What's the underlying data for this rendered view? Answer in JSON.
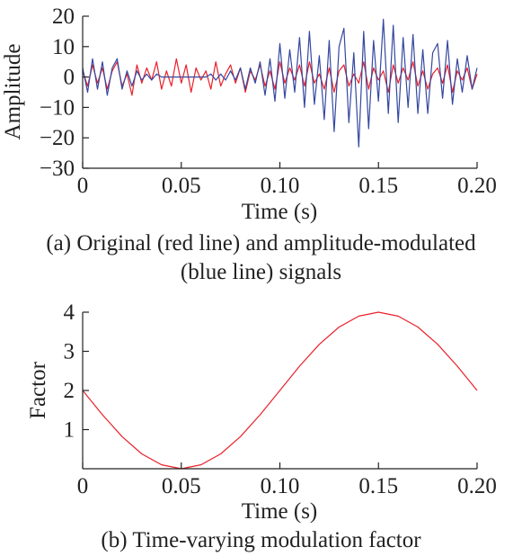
{
  "chart_data": [
    {
      "type": "line",
      "title": "",
      "caption_line1": "(a) Original (red line) and amplitude-modulated",
      "caption_line2": "(blue line) signals",
      "xlabel": "Time (s)",
      "ylabel": "Amplitude",
      "xlim": [
        0,
        0.2
      ],
      "ylim": [
        -30,
        20
      ],
      "xticks": [
        0,
        0.05,
        0.1,
        0.15,
        0.2
      ],
      "xtick_labels": [
        "0",
        "0.05",
        "0.10",
        "0.15",
        "0.20"
      ],
      "yticks": [
        -30,
        -20,
        -10,
        0,
        10,
        20
      ],
      "ytick_labels": [
        "−30",
        "−20",
        "−10",
        "0",
        "10",
        "20"
      ],
      "grid": false,
      "series": [
        {
          "color": "#e8212a",
          "x": [
            0,
            0.0025,
            0.005,
            0.0075,
            0.01,
            0.0125,
            0.015,
            0.0175,
            0.02,
            0.0225,
            0.025,
            0.0275,
            0.03,
            0.0325,
            0.035,
            0.0375,
            0.04,
            0.0425,
            0.045,
            0.0475,
            0.05,
            0.0525,
            0.055,
            0.0575,
            0.06,
            0.0625,
            0.065,
            0.0675,
            0.07,
            0.0725,
            0.075,
            0.0775,
            0.08,
            0.0825,
            0.085,
            0.0875,
            0.09,
            0.0925,
            0.095,
            0.0975,
            0.1,
            0.1025,
            0.105,
            0.1075,
            0.11,
            0.1125,
            0.115,
            0.1175,
            0.12,
            0.1225,
            0.125,
            0.1275,
            0.13,
            0.1325,
            0.135,
            0.1375,
            0.14,
            0.1425,
            0.145,
            0.1475,
            0.15,
            0.1525,
            0.155,
            0.1575,
            0.16,
            0.1625,
            0.165,
            0.1675,
            0.17,
            0.1725,
            0.175,
            0.1775,
            0.18,
            0.1825,
            0.185,
            0.1875,
            0.19,
            0.1925,
            0.195,
            0.1975,
            0.2
          ],
          "values": [
            2,
            -3,
            4,
            -2,
            3,
            -4,
            2,
            5,
            -3,
            1,
            -6,
            4,
            -2,
            3,
            -1,
            5,
            -4,
            2,
            -3,
            6,
            -2,
            4,
            -5,
            3,
            -1,
            2,
            -4,
            5,
            -3,
            1,
            4,
            -2,
            3,
            -5,
            2,
            -1,
            4,
            -3,
            2,
            -4,
            5,
            -2,
            3,
            -1,
            4,
            -3,
            5,
            -2,
            1,
            -4,
            3,
            -5,
            2,
            4,
            -3,
            1,
            -2,
            5,
            -4,
            3,
            -1,
            2,
            -5,
            4,
            -2,
            3,
            -1,
            5,
            -3,
            2,
            -4,
            1,
            3,
            -2,
            4,
            -5,
            2,
            -1,
            3,
            -4,
            1
          ]
        },
        {
          "color": "#3448a0",
          "x": [
            0,
            0.0025,
            0.005,
            0.0075,
            0.01,
            0.0125,
            0.015,
            0.0175,
            0.02,
            0.0225,
            0.025,
            0.0275,
            0.03,
            0.0325,
            0.035,
            0.0375,
            0.04,
            0.0425,
            0.045,
            0.0475,
            0.05,
            0.0525,
            0.055,
            0.0575,
            0.06,
            0.0625,
            0.065,
            0.0675,
            0.07,
            0.0725,
            0.075,
            0.0775,
            0.08,
            0.0825,
            0.085,
            0.0875,
            0.09,
            0.0925,
            0.095,
            0.0975,
            0.1,
            0.1025,
            0.105,
            0.1075,
            0.11,
            0.1125,
            0.115,
            0.1175,
            0.12,
            0.1225,
            0.125,
            0.1275,
            0.13,
            0.1325,
            0.135,
            0.1375,
            0.14,
            0.1425,
            0.145,
            0.1475,
            0.15,
            0.1525,
            0.155,
            0.1575,
            0.16,
            0.1625,
            0.165,
            0.1675,
            0.17,
            0.1725,
            0.175,
            0.1775,
            0.18,
            0.1825,
            0.185,
            0.1875,
            0.19,
            0.1925,
            0.195,
            0.1975,
            0.2
          ],
          "values": [
            3,
            -5,
            6,
            -4,
            5,
            -6,
            3,
            6,
            -4,
            2,
            -3,
            2,
            -1,
            1,
            -1,
            1,
            0,
            0,
            0,
            0,
            0,
            0,
            0,
            0,
            0,
            0,
            1,
            -1,
            1,
            -1,
            2,
            -1,
            3,
            -4,
            3,
            -2,
            5,
            -6,
            6,
            -8,
            11,
            -7,
            9,
            -5,
            13,
            -10,
            15,
            -9,
            7,
            -14,
            12,
            -18,
            10,
            16,
            -15,
            8,
            -23,
            15,
            -17,
            12,
            -8,
            19,
            -12,
            17,
            -15,
            13,
            -10,
            14,
            -12,
            9,
            -12,
            8,
            11,
            -7,
            12,
            -9,
            6,
            -5,
            7,
            -4,
            3
          ]
        }
      ]
    },
    {
      "type": "line",
      "title": "",
      "caption": "(b) Time-varying modulation factor",
      "xlabel": "Time (s)",
      "ylabel": "Factor",
      "xlim": [
        0,
        0.2
      ],
      "ylim": [
        0,
        4
      ],
      "xticks": [
        0,
        0.05,
        0.1,
        0.15,
        0.2
      ],
      "xtick_labels": [
        "0",
        "0.05",
        "0.10",
        "0.15",
        "0.20"
      ],
      "yticks": [
        1,
        2,
        3,
        4
      ],
      "ytick_labels": [
        "1",
        "2",
        "3",
        "4"
      ],
      "grid": false,
      "series": [
        {
          "color": "#e8212a",
          "x": [
            0,
            0.01,
            0.02,
            0.03,
            0.04,
            0.05,
            0.06,
            0.07,
            0.08,
            0.09,
            0.1,
            0.11,
            0.12,
            0.13,
            0.14,
            0.15,
            0.16,
            0.17,
            0.18,
            0.19,
            0.2
          ],
          "values": [
            2,
            1.38,
            0.82,
            0.38,
            0.1,
            0,
            0.1,
            0.38,
            0.82,
            1.38,
            2,
            2.62,
            3.18,
            3.62,
            3.9,
            4,
            3.9,
            3.62,
            3.18,
            2.62,
            2
          ]
        }
      ]
    }
  ]
}
